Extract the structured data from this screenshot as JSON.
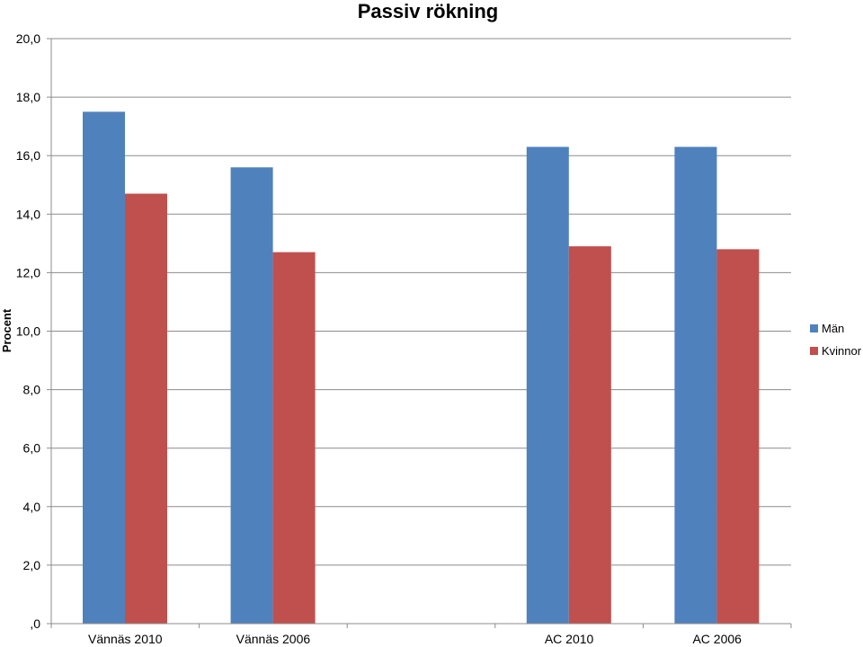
{
  "chart_data": {
    "type": "bar",
    "title": "Passiv rökning",
    "ylabel": "Procent",
    "xlabel": "",
    "categories": [
      "Vännäs 2010",
      "Vännäs 2006",
      "",
      "AC 2010",
      "AC 2006"
    ],
    "series": [
      {
        "name": "Män",
        "color": "#4F81BD",
        "values": [
          17.5,
          15.6,
          null,
          16.3,
          16.3
        ]
      },
      {
        "name": "Kvinnor",
        "color": "#C0504D",
        "values": [
          14.7,
          12.7,
          null,
          12.9,
          12.8
        ]
      }
    ],
    "ylim": [
      0,
      20
    ],
    "yticks": [
      0,
      2,
      4,
      6,
      8,
      10,
      12,
      14,
      16,
      18,
      20
    ],
    "ytick_labels": [
      ",0",
      "2,0",
      "4,0",
      "6,0",
      "8,0",
      "10,0",
      "12,0",
      "14,0",
      "16,0",
      "18,0",
      "20,0"
    ],
    "grid": true,
    "legend_position": "right"
  }
}
